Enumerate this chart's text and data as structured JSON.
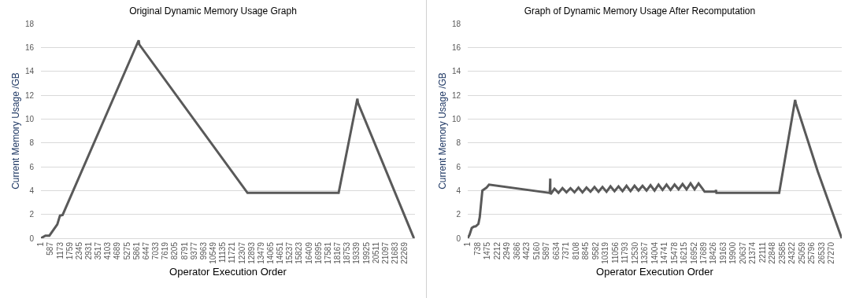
{
  "chart_data": [
    {
      "type": "line",
      "title": "Original Dynamic Memory Usage Graph",
      "xlabel": "Operator Execution Order",
      "ylabel": "Current Memory Usage /GB",
      "series": [
        {
          "color": "#595959",
          "x": [
            1,
            276,
            518,
            1003,
            1165,
            1327,
            5984,
            6020,
            12647,
            18226,
            19374,
            19410,
            22835
          ],
          "values": [
            0,
            0.22,
            0.22,
            1.16,
            1.9,
            1.95,
            16.6,
            16.25,
            3.8,
            3.8,
            11.7,
            11.35,
            0
          ]
        }
      ],
      "xlim": [
        1,
        22900
      ],
      "xticks": [
        1,
        587,
        1173,
        1759,
        2345,
        2931,
        3517,
        4103,
        4689,
        5275,
        5861,
        6447,
        7033,
        7619,
        8205,
        8791,
        9377,
        9963,
        10549,
        11135,
        11721,
        12307,
        12893,
        13479,
        14065,
        14651,
        15237,
        15823,
        16409,
        16995,
        17581,
        18167,
        18753,
        19339,
        19925,
        20511,
        21097,
        21683,
        22269
      ],
      "ylim": [
        0,
        18
      ],
      "yticks": [
        0,
        2,
        4,
        6,
        8,
        10,
        12,
        14,
        16,
        18
      ],
      "grid": "y",
      "marker": "none",
      "line_style": "solid"
    },
    {
      "type": "line",
      "title": "Graph of Dynamic Memory Usage After Recomputation",
      "xlabel": "Operator Execution Order",
      "ylabel": "Current Memory Usage /GB",
      "series": [
        {
          "color": "#595959",
          "x": [
            1,
            141,
            300,
            460,
            600,
            799,
            899,
            1098,
            1397,
            1597,
            6150,
            6185,
            6190,
            6220,
            6500,
            6800,
            7100,
            7400,
            7700,
            8000,
            8300,
            8600,
            8900,
            9200,
            9500,
            9800,
            10100,
            10400,
            10700,
            11000,
            11300,
            11600,
            11900,
            12200,
            12500,
            12800,
            13100,
            13400,
            13700,
            14000,
            14300,
            14600,
            14900,
            15200,
            15500,
            15800,
            16100,
            16400,
            16700,
            17000,
            17300,
            17600,
            17755,
            18580,
            18600,
            18640,
            23340,
            24535,
            24590,
            26231,
            28025
          ],
          "values": [
            0,
            0.3,
            0.86,
            0.97,
            1.0,
            1.2,
            1.76,
            4.0,
            4.23,
            4.5,
            3.8,
            5.0,
            3.8,
            3.7,
            4.15,
            3.8,
            4.2,
            3.85,
            4.2,
            3.85,
            4.25,
            3.85,
            4.25,
            3.9,
            4.3,
            3.9,
            4.3,
            3.9,
            4.35,
            3.95,
            4.35,
            3.95,
            4.4,
            3.95,
            4.4,
            4.0,
            4.4,
            4.0,
            4.45,
            4.0,
            4.5,
            4.05,
            4.5,
            4.05,
            4.5,
            4.1,
            4.55,
            4.1,
            4.6,
            4.1,
            4.6,
            4.15,
            3.9,
            3.9,
            4.05,
            3.8,
            3.8,
            11.6,
            11.3,
            5.6,
            0
          ]
        }
      ],
      "xlim": [
        1,
        28030
      ],
      "xticks": [
        1,
        738,
        1475,
        2212,
        2949,
        3686,
        4423,
        5160,
        5897,
        6634,
        7371,
        8108,
        8845,
        9582,
        10319,
        11056,
        11793,
        12530,
        13267,
        14004,
        14741,
        15478,
        16215,
        16952,
        17689,
        18426,
        19163,
        19900,
        20637,
        21374,
        22111,
        22848,
        23585,
        24322,
        25059,
        25796,
        26533,
        27270
      ],
      "ylim": [
        0,
        18
      ],
      "yticks": [
        0,
        2,
        4,
        6,
        8,
        10,
        12,
        14,
        16,
        18
      ],
      "grid": "y",
      "marker": "none",
      "line_style": "solid"
    }
  ]
}
